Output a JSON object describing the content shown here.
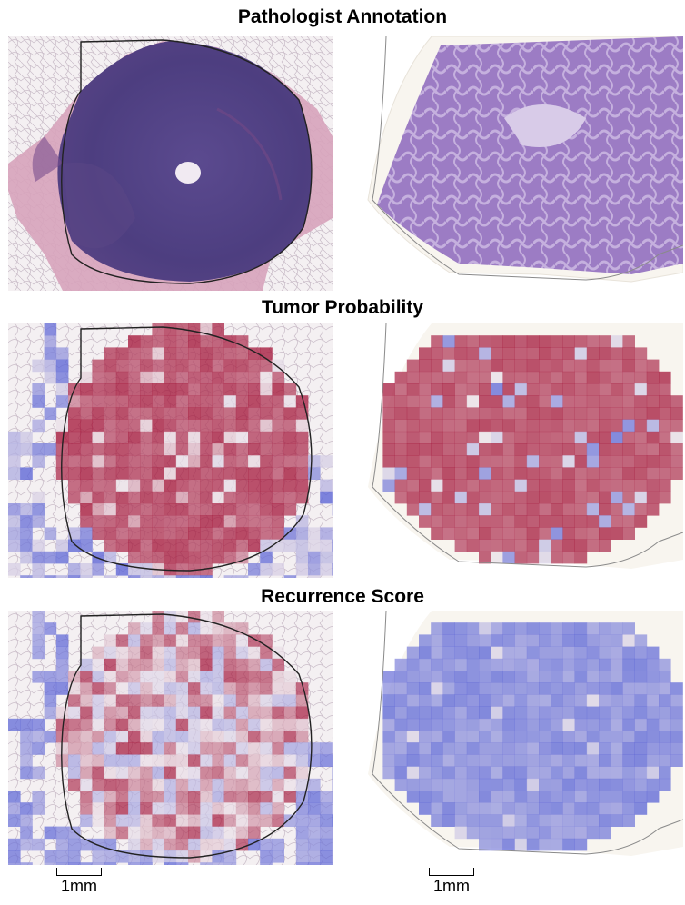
{
  "sections": [
    {
      "title": "Pathologist Annotation"
    },
    {
      "title": "Tumor Probability"
    },
    {
      "title": "Recurrence Score"
    }
  ],
  "scale_bars": [
    {
      "label": "1mm"
    },
    {
      "label": "1mm"
    }
  ],
  "colors": {
    "he_pink": "#d9a8c2",
    "he_purple": "#4f3e84",
    "he_light_purple": "#9b7dc2",
    "fat_white": "#f2eef0",
    "heat_red": "#a4163a",
    "heat_blue": "#5a63d6",
    "outline": "#222222"
  }
}
